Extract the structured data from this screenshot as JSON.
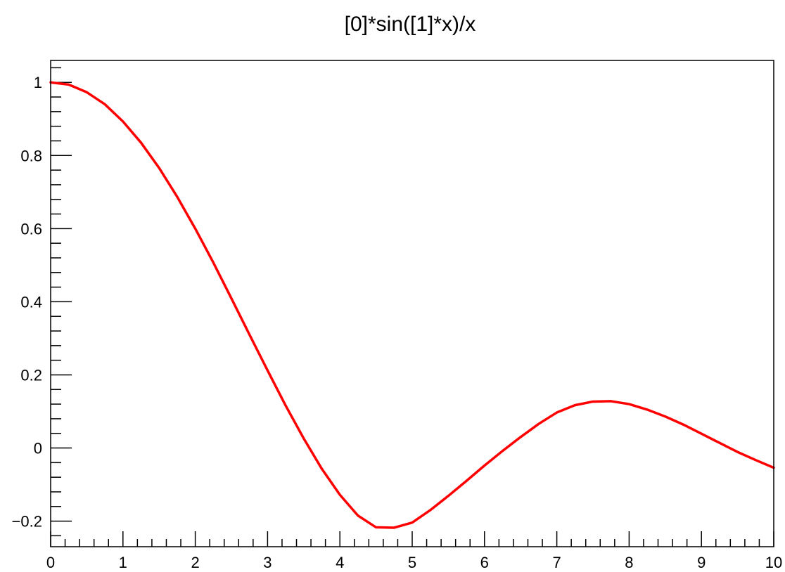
{
  "chart_data": {
    "type": "line",
    "title": "[0]*sin([1]*x)/x",
    "xlabel": "",
    "ylabel": "",
    "xlim": [
      0,
      10
    ],
    "ylim": [
      -0.27,
      1.06
    ],
    "x_ticks": [
      0,
      1,
      2,
      3,
      4,
      5,
      6,
      7,
      8,
      9,
      10
    ],
    "x_tick_labels": [
      "0",
      "1",
      "2",
      "3",
      "4",
      "5",
      "6",
      "7",
      "8",
      "9",
      "10"
    ],
    "y_ticks": [
      -0.2,
      0,
      0.2,
      0.4,
      0.6,
      0.8,
      1
    ],
    "y_tick_labels": [
      "−0.2",
      "0",
      "0.2",
      "0.4",
      "0.6",
      "0.8",
      "1"
    ],
    "grid": false,
    "colors": {
      "line": "#ff0000",
      "frame": "#000000"
    },
    "series": [
      {
        "x": [
          0.0,
          0.25,
          0.5,
          0.75,
          1.0,
          1.25,
          1.5,
          1.75,
          2.0,
          2.25,
          2.5,
          2.75,
          3.0,
          3.25,
          3.5,
          3.75,
          4.0,
          4.25,
          4.5,
          4.75,
          5.0,
          5.25,
          5.5,
          5.75,
          6.0,
          6.25,
          6.5,
          6.75,
          7.0,
          7.25,
          7.5,
          7.75,
          8.0,
          8.25,
          8.5,
          8.75,
          9.0,
          9.25,
          9.5,
          9.75,
          10.0
        ],
        "y": [
          1.0,
          0.994,
          0.973,
          0.94,
          0.893,
          0.835,
          0.766,
          0.687,
          0.6,
          0.507,
          0.409,
          0.31,
          0.212,
          0.116,
          0.026,
          -0.057,
          -0.128,
          -0.185,
          -0.217,
          -0.218,
          -0.204,
          -0.17,
          -0.131,
          -0.09,
          -0.048,
          -0.008,
          0.03,
          0.066,
          0.097,
          0.117,
          0.127,
          0.128,
          0.12,
          0.105,
          0.086,
          0.064,
          0.039,
          0.014,
          -0.011,
          -0.033,
          -0.054
        ]
      }
    ]
  }
}
